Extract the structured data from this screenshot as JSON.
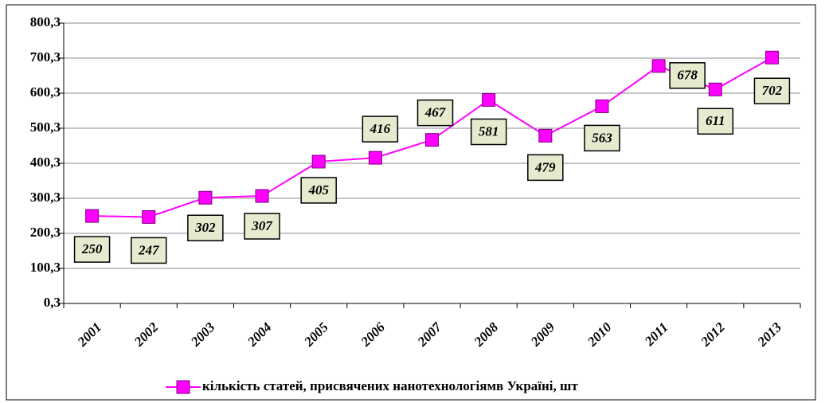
{
  "chart_data": {
    "type": "line",
    "categories": [
      "2001",
      "2002",
      "2003",
      "2004",
      "2005",
      "2006",
      "2007",
      "2008",
      "2009",
      "2010",
      "2011",
      "2012",
      "2013"
    ],
    "series": [
      {
        "name": "кількість статей, присвячених нанотехнологіямв Україні, шт",
        "color": "#ff00ff",
        "values": [
          250,
          247,
          302,
          307,
          405,
          416,
          467,
          581,
          479,
          563,
          678,
          611,
          702
        ]
      }
    ],
    "ylim": [
      0.3,
      800.3
    ],
    "yticks": [
      {
        "value": 0.3,
        "label": "0,3"
      },
      {
        "value": 100.3,
        "label": "100,3"
      },
      {
        "value": 200.3,
        "label": "200,3"
      },
      {
        "value": 300.3,
        "label": "300,3"
      },
      {
        "value": 400.3,
        "label": "400,3"
      },
      {
        "value": 500.3,
        "label": "500,3"
      },
      {
        "value": 600.3,
        "label": "600,3"
      },
      {
        "value": 700.3,
        "label": "700,3"
      },
      {
        "value": 800.3,
        "label": "800,3"
      }
    ],
    "grid": true,
    "legend": "bottom"
  }
}
